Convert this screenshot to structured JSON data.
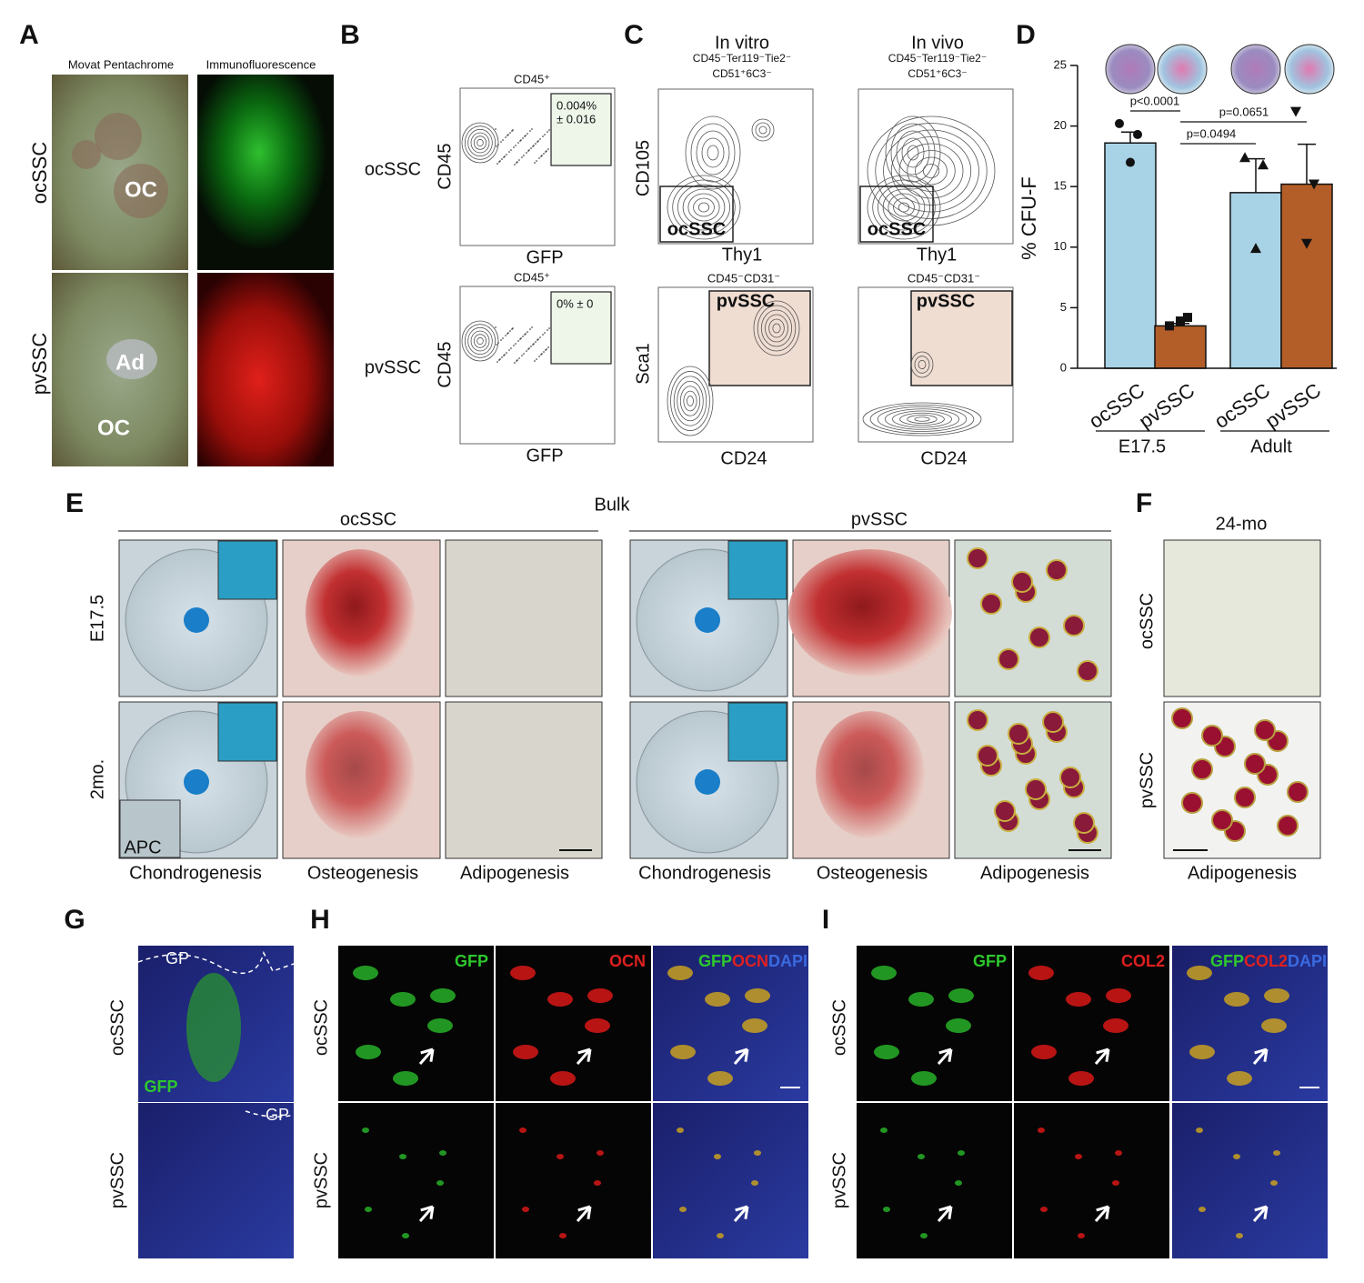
{
  "panels": {
    "A": {
      "label": "A",
      "column_titles": [
        "Movat Pentachrome",
        "Immunofluorescence"
      ],
      "row_labels": [
        "ocSSC",
        "pvSSC"
      ],
      "annotations": [
        "OC",
        "Ad",
        "OC"
      ]
    },
    "B": {
      "label": "B",
      "row_labels": [
        "ocSSC",
        "pvSSC"
      ],
      "plots": [
        {
          "title": "CD45⁺",
          "y_label": "CD45",
          "x_label": "GFP",
          "gate_label": [
            "0.004%",
            "± 0.016"
          ]
        },
        {
          "title": "CD45⁺",
          "y_label": "CD45",
          "x_label": "GFP",
          "gate_label": [
            "0% ± 0"
          ]
        }
      ]
    },
    "C": {
      "label": "C",
      "column_titles": [
        [
          "In vitro",
          "CD45⁻Ter119⁻Tie2⁻",
          "CD51⁺6C3⁻"
        ],
        [
          "In vivo",
          "CD45⁻Ter119⁻Tie2⁻",
          "CD51⁺6C3⁻"
        ]
      ],
      "plots": [
        {
          "y_label": "CD105",
          "x_label": "Thy1",
          "gate_label": "ocSSC"
        },
        {
          "x_label": "Thy1",
          "gate_label": "ocSSC"
        },
        {
          "title": "CD45⁻CD31⁻",
          "y_label": "Sca1",
          "x_label": "CD24",
          "gate_label": "pvSSC"
        },
        {
          "title": "CD45⁻CD31⁻",
          "x_label": "CD24",
          "gate_label": "pvSSC"
        }
      ]
    },
    "D": {
      "label": "D"
    },
    "E": {
      "label": "E",
      "title": "Bulk",
      "groups": [
        "ocSSC",
        "pvSSC"
      ],
      "row_labels": [
        "E17.5",
        "2mo."
      ],
      "column_labels": [
        "Chondrogenesis",
        "Osteogenesis",
        "Adipogenesis",
        "Chondrogenesis",
        "Osteogenesis",
        "Adipogenesis"
      ],
      "inset_label": "APC"
    },
    "F": {
      "label": "F",
      "title": "24-mo",
      "row_labels": [
        "ocSSC",
        "pvSSC"
      ],
      "column_label": "Adipogenesis"
    },
    "G": {
      "label": "G",
      "annotations": [
        "GP",
        "GP"
      ],
      "channel": "GFP",
      "row_labels": [
        "ocSSC",
        "pvSSC"
      ]
    },
    "H": {
      "label": "H",
      "channels": [
        "GFP",
        "OCN"
      ],
      "merged": [
        "GFP",
        "OCN",
        "DAPI"
      ],
      "row_labels": [
        "ocSSC",
        "pvSSC"
      ]
    },
    "I": {
      "label": "I",
      "channels": [
        "GFP",
        "COL2"
      ],
      "merged": [
        "GFP",
        "COL2",
        "DAPI"
      ],
      "row_labels": [
        "ocSSC",
        "pvSSC"
      ]
    }
  },
  "chart_data": {
    "type": "bar",
    "y_label": "% CFU-F",
    "categories": [
      "ocSSC",
      "pvSSC",
      "ocSSC",
      "pvSSC"
    ],
    "groups": [
      "E17.5",
      "Adult"
    ],
    "values": [
      18.6,
      3.5,
      14.5,
      15.2
    ],
    "errors": [
      0.9,
      0.2,
      2.8,
      3.3
    ],
    "colors": [
      "#a8d3e6",
      "#b35d28",
      "#a8d3e6",
      "#b35d28"
    ],
    "points": [
      [
        20.2,
        19.3,
        17.0
      ],
      [
        3.5,
        4.2,
        3.9
      ],
      [
        17.4,
        16.8,
        9.9
      ],
      [
        21.2,
        15.2,
        10.3
      ]
    ],
    "markers": [
      "circle",
      "square",
      "triangle-up",
      "triangle-down"
    ],
    "annotations": [
      "p<0.0001",
      "p=0.0494",
      "p=0.0651"
    ],
    "ylim": [
      0,
      25
    ],
    "yticks": [
      0,
      5,
      10,
      15,
      20,
      25
    ]
  }
}
